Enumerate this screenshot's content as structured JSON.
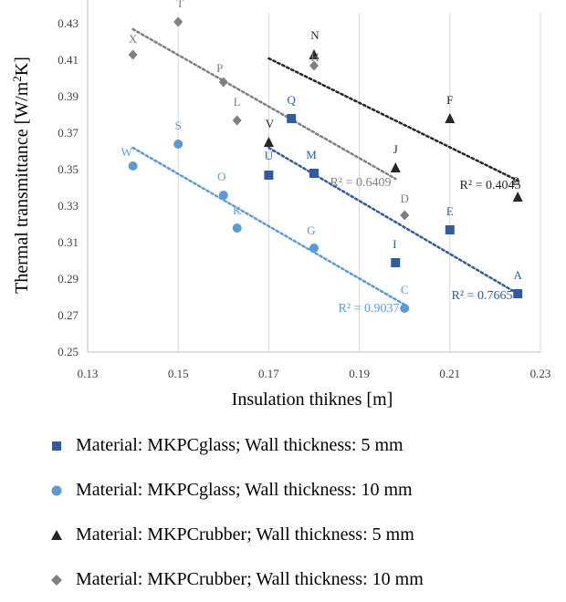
{
  "chart_data": {
    "type": "scatter",
    "xlabel": "Insulation thiknes [m]",
    "ylabel_main": "Thermal transmittance [W/m",
    "ylabel_sup": "2",
    "ylabel_end": "K]",
    "xlim": [
      0.13,
      0.23
    ],
    "ylim": [
      0.25,
      0.44
    ],
    "x_ticks": [
      "0.13",
      "0.15",
      "0.17",
      "0.19",
      "0.21",
      "0.23"
    ],
    "y_ticks": [
      "0.25",
      "0.27",
      "0.29",
      "0.31",
      "0.33",
      "0.35",
      "0.37",
      "0.39",
      "0.41",
      "0.43"
    ],
    "grid": "vertical",
    "legend_position": "bottom",
    "series": [
      {
        "name": "Material: MKPCglass; Wall thickness: 5 mm",
        "marker": "square",
        "color": "#2E5C9E",
        "points": [
          {
            "label": "A",
            "x": 0.225,
            "y": 0.282
          },
          {
            "label": "E",
            "x": 0.21,
            "y": 0.317
          },
          {
            "label": "I",
            "x": 0.198,
            "y": 0.299
          },
          {
            "label": "M",
            "x": 0.18,
            "y": 0.348
          },
          {
            "label": "Q",
            "x": 0.175,
            "y": 0.378
          },
          {
            "label": "U",
            "x": 0.17,
            "y": 0.347
          }
        ],
        "trendline": {
          "x": [
            0.17,
            0.225
          ],
          "y": [
            0.362,
            0.282
          ]
        },
        "r2": "R² = 0.7665"
      },
      {
        "name": "Material: MKPCglass; Wall thickness: 10 mm",
        "marker": "circle",
        "color": "#5B9BD5",
        "points": [
          {
            "label": "C",
            "x": 0.2,
            "y": 0.274
          },
          {
            "label": "G",
            "x": 0.18,
            "y": 0.307
          },
          {
            "label": "K",
            "x": 0.163,
            "y": 0.318
          },
          {
            "label": "O",
            "x": 0.16,
            "y": 0.336
          },
          {
            "label": "S",
            "x": 0.15,
            "y": 0.364
          },
          {
            "label": "W",
            "x": 0.14,
            "y": 0.352
          }
        ],
        "trendline": {
          "x": [
            0.14,
            0.2
          ],
          "y": [
            0.362,
            0.276
          ]
        },
        "r2": "R² = 0.9037"
      },
      {
        "name": "Material: MKPCrubber; Wall thickness: 5 mm",
        "marker": "triangle",
        "color": "#262626",
        "points": [
          {
            "label": "B",
            "x": 0.225,
            "y": 0.335
          },
          {
            "label": "F",
            "x": 0.21,
            "y": 0.378
          },
          {
            "label": "J",
            "x": 0.198,
            "y": 0.351
          },
          {
            "label": "N",
            "x": 0.18,
            "y": 0.413
          },
          {
            "label": "V",
            "x": 0.17,
            "y": 0.365
          }
        ],
        "trendline": {
          "x": [
            0.17,
            0.225
          ],
          "y": [
            0.411,
            0.344
          ]
        },
        "r2": "R² = 0.4045"
      },
      {
        "name": "Material: MKPCrubber; Wall thickness: 10 mm",
        "marker": "diamond",
        "color": "#7F7F7F",
        "points": [
          {
            "label": "D",
            "x": 0.2,
            "y": 0.325
          },
          {
            "label": "H",
            "x": 0.18,
            "y": 0.407
          },
          {
            "label": "L",
            "x": 0.163,
            "y": 0.377
          },
          {
            "label": "P",
            "x": 0.16,
            "y": 0.398
          },
          {
            "label": "T",
            "x": 0.15,
            "y": 0.431
          },
          {
            "label": "X",
            "x": 0.14,
            "y": 0.413
          }
        ],
        "trendline": {
          "x": [
            0.14,
            0.198
          ],
          "y": [
            0.427,
            0.345
          ]
        },
        "r2": "R² = 0.6409"
      }
    ]
  }
}
